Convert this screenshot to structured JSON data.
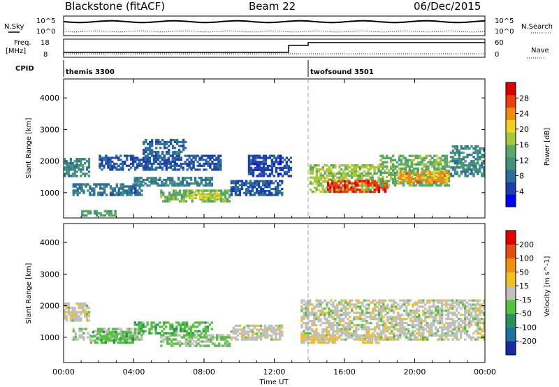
{
  "header": {
    "station": "Blackstone (fitACF)",
    "beam": "Beam 22",
    "date": "06/Dec/2015"
  },
  "strip_labels": {
    "nsky": "N.Sky",
    "nsearch": "N.Search",
    "freq_line1": "Freq.",
    "freq_line2": "[MHz]",
    "nave": "Nave",
    "cpid": "CPID",
    "noise_ticks": [
      "10^5",
      "10^0"
    ],
    "freq_ticks": [
      "18",
      "8"
    ],
    "nave_ticks": [
      "60",
      "0"
    ]
  },
  "cpid_segments": [
    {
      "label": "themis 3300",
      "start_hour": 0
    },
    {
      "label": "twofsound 3501",
      "start_hour": 14
    }
  ],
  "x_axis": {
    "label": "Time UT",
    "ticks": [
      "00:00",
      "04:00",
      "08:00",
      "12:00",
      "16:00",
      "20:00",
      "00:00"
    ],
    "tick_hours": [
      0,
      4,
      8,
      12,
      16,
      20,
      24
    ]
  },
  "colors": {
    "power": [
      "#0000ff",
      "#1e3fa8",
      "#2e6e9a",
      "#44907e",
      "#5ba864",
      "#a6c83a",
      "#f0d020",
      "#f08a10",
      "#e84010",
      "#dd0000"
    ],
    "velocity": [
      "#1a2aa0",
      "#1f6fa0",
      "#2a9060",
      "#58c040",
      "#c0c0bd",
      "#f0c020",
      "#f09010",
      "#e05010",
      "#e00000"
    ]
  },
  "chart_data": [
    {
      "type": "heatmap",
      "name": "power-panel",
      "xlabel": "Time UT",
      "ylabel": "Slant Range [km]",
      "xlim": [
        0,
        24
      ],
      "ylim": [
        200,
        4600
      ],
      "yticks": [
        1000,
        2000,
        3000,
        4000
      ],
      "colorbar": {
        "label": "Power [dB]",
        "ticks": [
          "28",
          "24",
          "20",
          "16",
          "12",
          "8",
          "4"
        ],
        "range": [
          0,
          30
        ]
      },
      "regions": [
        {
          "t0": 0.0,
          "t1": 1.5,
          "r0": 1500,
          "r1": 2100,
          "value": 10
        },
        {
          "t0": 0.5,
          "t1": 4.5,
          "r0": 900,
          "r1": 1300,
          "value": 8
        },
        {
          "t0": 1.0,
          "t1": 3.0,
          "r0": 250,
          "r1": 450,
          "value": 12
        },
        {
          "t0": 2.0,
          "t1": 9.0,
          "r0": 1700,
          "r1": 2200,
          "value": 6
        },
        {
          "t0": 4.5,
          "t1": 7.0,
          "r0": 2200,
          "r1": 2700,
          "value": 7
        },
        {
          "t0": 4.0,
          "t1": 8.5,
          "r0": 1200,
          "r1": 1500,
          "value": 9
        },
        {
          "t0": 5.5,
          "t1": 9.5,
          "r0": 700,
          "r1": 1100,
          "value": 14
        },
        {
          "t0": 7.0,
          "t1": 9.0,
          "r0": 800,
          "r1": 1000,
          "value": 18
        },
        {
          "t0": 9.5,
          "t1": 12.5,
          "r0": 900,
          "r1": 1400,
          "value": 6
        },
        {
          "t0": 10.5,
          "t1": 13.0,
          "r0": 1500,
          "r1": 2200,
          "value": 5
        },
        {
          "t0": 14.0,
          "t1": 18.0,
          "r0": 1000,
          "r1": 1900,
          "value": 16
        },
        {
          "t0": 15.0,
          "t1": 18.5,
          "r0": 1000,
          "r1": 1400,
          "value": 26
        },
        {
          "t0": 18.0,
          "t1": 22.0,
          "r0": 1200,
          "r1": 2200,
          "value": 14
        },
        {
          "t0": 19.0,
          "t1": 22.0,
          "r0": 1300,
          "r1": 1700,
          "value": 22
        },
        {
          "t0": 22.0,
          "t1": 24.0,
          "r0": 1500,
          "r1": 2500,
          "value": 10
        }
      ]
    },
    {
      "type": "heatmap",
      "name": "velocity-panel",
      "xlabel": "Time UT",
      "ylabel": "Slant Range [km]",
      "xlim": [
        0,
        24
      ],
      "ylim": [
        200,
        4600
      ],
      "yticks": [
        1000,
        2000,
        3000,
        4000
      ],
      "colorbar": {
        "label": "Velocity [m s^-1]",
        "ticks": [
          "200",
          "100",
          "50",
          "15",
          "-15",
          "-50",
          "-100",
          "-200"
        ],
        "range": [
          -250,
          250
        ]
      },
      "regions": [
        {
          "t0": 0.0,
          "t1": 1.5,
          "r0": 1500,
          "r1": 2100,
          "value": 0
        },
        {
          "t0": 0.5,
          "t1": 4.5,
          "r0": 900,
          "r1": 1300,
          "value": -10
        },
        {
          "t0": 1.5,
          "t1": 4.0,
          "r0": 800,
          "r1": 1200,
          "value": -60
        },
        {
          "t0": 4.0,
          "t1": 8.5,
          "r0": 1100,
          "r1": 1500,
          "value": -60
        },
        {
          "t0": 5.5,
          "t1": 9.5,
          "r0": 700,
          "r1": 1100,
          "value": -30
        },
        {
          "t0": 9.5,
          "t1": 12.5,
          "r0": 900,
          "r1": 1400,
          "value": 0
        },
        {
          "t0": 13.5,
          "t1": 24.0,
          "r0": 900,
          "r1": 2200,
          "value": 0
        },
        {
          "t0": 13.5,
          "t1": 15.5,
          "r0": 800,
          "r1": 1100,
          "value": 40
        },
        {
          "t0": 17.0,
          "t1": 18.0,
          "r0": 800,
          "r1": 1100,
          "value": 30
        }
      ]
    }
  ]
}
